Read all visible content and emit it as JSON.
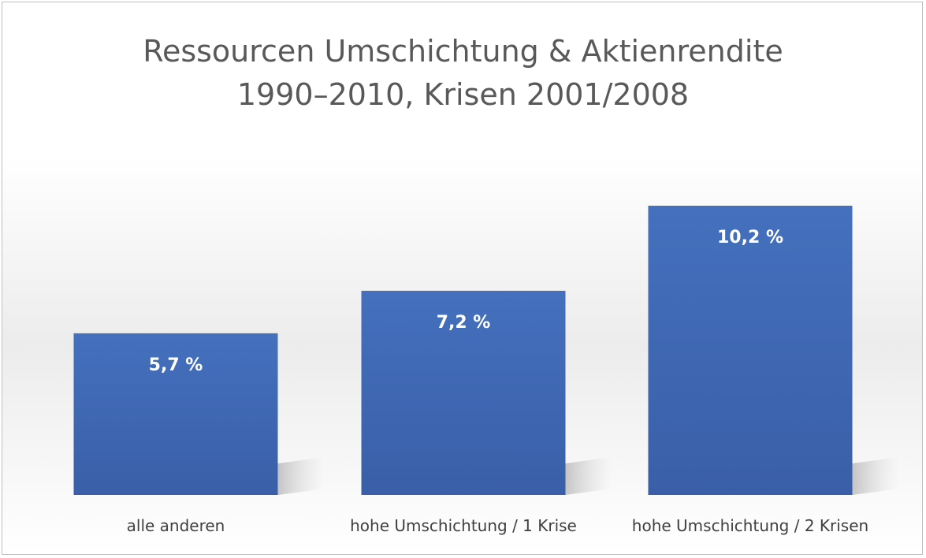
{
  "chart_data": {
    "type": "bar",
    "title_line1": "Ressourcen Umschichtung & Aktienrendite",
    "title_line2": "1990–2010, Krisen 2001/2008",
    "categories": [
      "alle anderen",
      "hohe Umschichtung / 1 Krise",
      "hohe Umschichtung / 2 Krisen"
    ],
    "values": [
      5.7,
      7.2,
      10.2
    ],
    "value_labels": [
      "5,7 %",
      "7,2 %",
      "10,2 %"
    ],
    "ylim": [
      0,
      10.2
    ],
    "grid": false,
    "legend": "none",
    "bar_color": "#3f67b1"
  }
}
